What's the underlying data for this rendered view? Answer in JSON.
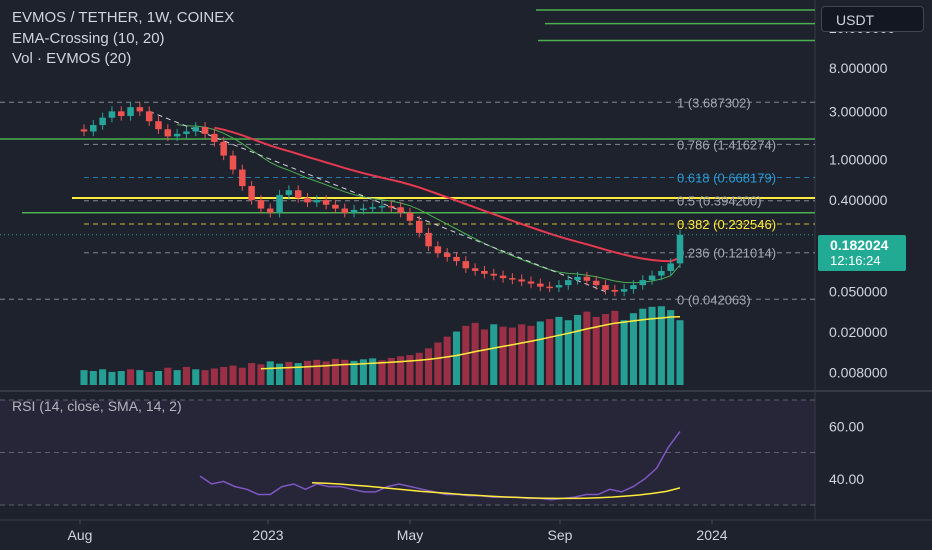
{
  "legend": {
    "symbol": "EVMOS / TETHER, 1W, COINEX",
    "ema": "EMA-Crossing (10, 20)",
    "vol": "Vol · EVMOS (20)",
    "rsi": "RSI (14, close, SMA, 14, 2)"
  },
  "currency": "USDT",
  "current_price": {
    "price": "0.182024",
    "countdown": "12:16:24"
  },
  "colors": {
    "background": "#1e222d",
    "up": "#26a69a",
    "down": "#ef5350",
    "ema_fast": "#4caf50",
    "ema_slow": "#e53950",
    "fib": "#a6a9b3",
    "fib_618": "#2a9bd4",
    "fib_382": "#ffeb3b",
    "hline_green": "#4caf50",
    "hline_yellow": "#ffeb3b",
    "rsi_line": "#7e57c2",
    "rsi_ma": "#ffeb3b",
    "vol_ma": "#ffeb3b"
  },
  "chart_data": [
    {
      "type": "candlestick",
      "title": "EVMOS / TETHER, 1W, COINEX",
      "y_scale": "log",
      "ylim": [
        0.006,
        30
      ],
      "price_ticks": [
        "20.000000",
        "8.000000",
        "3.000000",
        "1.000000",
        "0.400000",
        "0.050000",
        "0.020000",
        "0.008000"
      ],
      "x_ticks": [
        "Aug",
        "2023",
        "May",
        "Sep",
        "2024"
      ],
      "last_price": 0.182024,
      "weekly_closes": [
        1.9,
        2.2,
        2.6,
        3.0,
        2.7,
        3.3,
        3.0,
        2.4,
        2.0,
        1.7,
        1.8,
        1.9,
        2.1,
        1.8,
        1.5,
        1.1,
        0.8,
        0.55,
        0.4,
        0.33,
        0.3,
        0.45,
        0.5,
        0.42,
        0.38,
        0.4,
        0.36,
        0.33,
        0.3,
        0.32,
        0.33,
        0.34,
        0.35,
        0.34,
        0.3,
        0.25,
        0.19,
        0.14,
        0.12,
        0.11,
        0.1,
        0.085,
        0.08,
        0.075,
        0.072,
        0.068,
        0.066,
        0.063,
        0.06,
        0.056,
        0.055,
        0.058,
        0.065,
        0.07,
        0.064,
        0.058,
        0.052,
        0.05,
        0.053,
        0.058,
        0.065,
        0.072,
        0.08,
        0.095,
        0.182
      ],
      "fib_levels": [
        {
          "ratio": "1",
          "price": "3.687302"
        },
        {
          "ratio": "0.786",
          "price": "1.416274"
        },
        {
          "ratio": "0.618",
          "price": "0.668179"
        },
        {
          "ratio": "0.5",
          "price": "0.394200"
        },
        {
          "ratio": "0.382",
          "price": "0.232546"
        },
        {
          "ratio": "0.236",
          "price": "0.121014"
        },
        {
          "ratio": "0",
          "price": "0.042063"
        }
      ],
      "horizontal_lines": [
        {
          "price": 30,
          "color": "green"
        },
        {
          "price": 22,
          "color": "green"
        },
        {
          "price": 15,
          "color": "green"
        },
        {
          "price": 1.6,
          "color": "green"
        },
        {
          "price": 0.42,
          "color": "yellow"
        },
        {
          "price": 0.3,
          "color": "green"
        }
      ]
    },
    {
      "type": "bar",
      "title": "Vol · EVMOS (20)",
      "note": "weekly volume, log-scaled relative bars",
      "values": [
        1.2,
        1.1,
        1.3,
        1.0,
        1.1,
        1.3,
        1.2,
        1.0,
        1.1,
        1.5,
        1.2,
        1.6,
        1.3,
        1.2,
        1.4,
        1.6,
        1.8,
        1.5,
        2.2,
        2.0,
        2.5,
        2.1,
        2.4,
        2.2,
        2.6,
        2.8,
        2.5,
        3.0,
        2.8,
        2.6,
        2.9,
        3.1,
        2.7,
        3.2,
        3.6,
        3.9,
        4.5,
        6.0,
        8.5,
        12,
        16,
        22,
        26,
        18,
        24,
        21,
        20,
        24,
        22,
        28,
        32,
        36,
        30,
        40,
        48,
        36,
        42,
        50,
        30,
        44,
        56,
        62,
        64,
        52,
        30
      ],
      "up": [
        1,
        1,
        1,
        1,
        1,
        0,
        1,
        0,
        1,
        0,
        1,
        0,
        1,
        0,
        0,
        0,
        0,
        0,
        0,
        0,
        1,
        1,
        0,
        1,
        0,
        0,
        0,
        0,
        0,
        1,
        1,
        1,
        0,
        0,
        0,
        0,
        0,
        0,
        0,
        0,
        1,
        0,
        0,
        0,
        1,
        0,
        0,
        0,
        0,
        1,
        0,
        1,
        1,
        1,
        0,
        0,
        0,
        0,
        1,
        1,
        1,
        1,
        1,
        1,
        1
      ]
    },
    {
      "type": "line",
      "title": "RSI (14, close, SMA, 14, 2)",
      "ylim": [
        30,
        70
      ],
      "y_ticks": [
        "60.00",
        "40.00"
      ],
      "rsi": [
        41,
        38,
        39,
        37,
        36,
        34,
        34,
        37,
        38,
        36,
        38,
        37,
        37,
        36,
        35,
        35,
        37,
        38,
        37,
        36,
        35,
        34,
        34,
        33.5,
        33.5,
        33,
        33,
        33,
        32.5,
        32.5,
        32,
        32.5,
        33,
        34,
        34,
        36,
        35,
        37,
        40,
        44,
        52,
        58
      ],
      "rsi_ma": [
        38.5,
        38.3,
        38.0,
        37.6,
        37.2,
        36.7,
        36.2,
        35.7,
        35.2,
        34.8,
        34.4,
        34.0,
        33.7,
        33.4,
        33.1,
        32.9,
        32.7,
        32.6,
        32.5,
        32.5,
        32.6,
        32.8,
        33.0,
        33.4,
        33.8,
        34.4,
        35.2,
        36.5
      ]
    }
  ]
}
